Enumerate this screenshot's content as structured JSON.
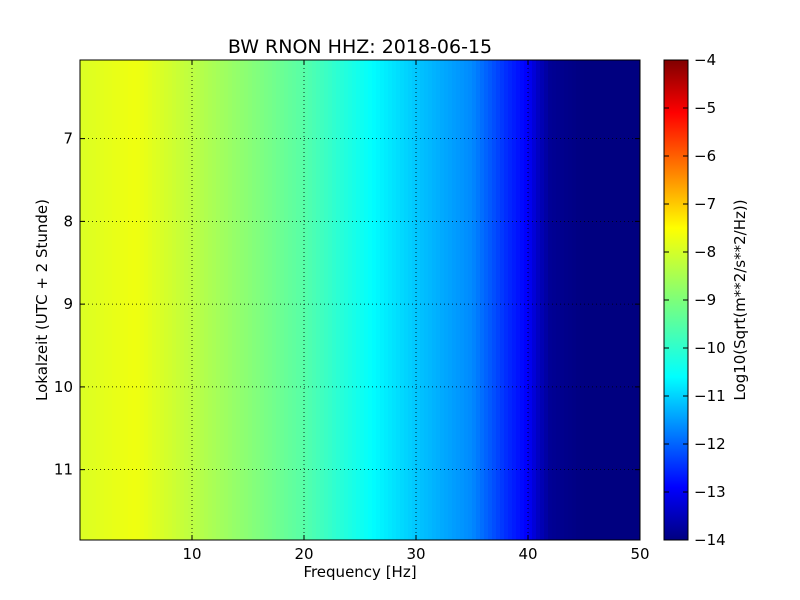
{
  "chart_data": {
    "type": "heatmap",
    "title": "BW RNON HHZ: 2018-06-15",
    "xlabel": "Frequency [Hz]",
    "ylabel": "Lokalzeit (UTC + 2 Stunde)",
    "xlim": [
      0,
      50
    ],
    "ylim": [
      6.05,
      11.85
    ],
    "y_inverted": true,
    "grid": true,
    "x_ticks": [
      10,
      20,
      30,
      40,
      50
    ],
    "y_ticks": [
      7,
      8,
      9,
      10,
      11
    ],
    "colormap": "jet",
    "colorbar": {
      "label": "Log10(Sqrt(m**2/s**2/Hz))",
      "min": -14,
      "max": -4,
      "ticks": [
        -4,
        -5,
        -6,
        -7,
        -8,
        -9,
        -10,
        -11,
        -12,
        -13,
        -14
      ]
    },
    "spectrum_profile": {
      "frequency_hz": [
        0,
        5,
        10,
        15,
        20,
        25,
        30,
        35,
        38,
        40,
        41,
        42,
        45,
        50
      ],
      "log10_amplitude": [
        -8.1,
        -7.9,
        -8.4,
        -8.9,
        -9.4,
        -10.1,
        -10.8,
        -11.4,
        -12.3,
        -12.8,
        -13.4,
        -13.8,
        -14,
        -14
      ]
    }
  }
}
